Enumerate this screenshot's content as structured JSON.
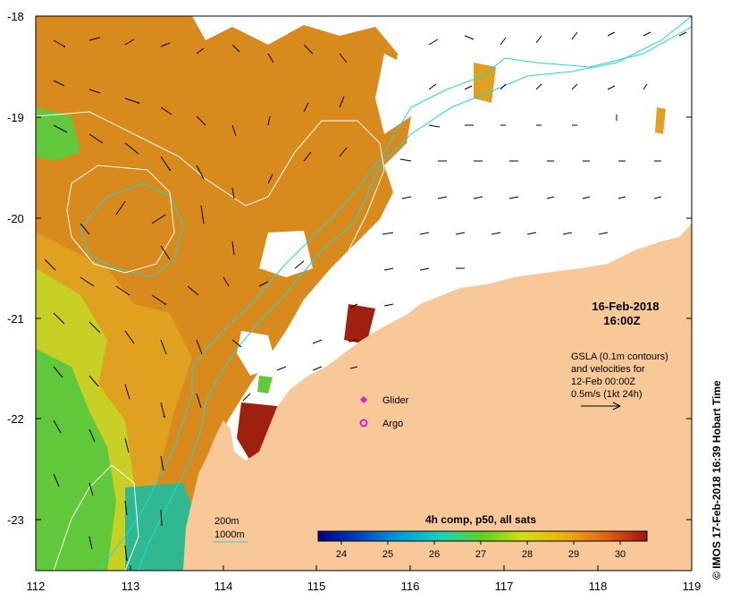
{
  "map": {
    "y_ticks": [
      "-18",
      "-19",
      "-20",
      "-21",
      "-22",
      "-23"
    ],
    "x_ticks": [
      "112",
      "113",
      "114",
      "115",
      "116",
      "117",
      "118",
      "119"
    ]
  },
  "info": {
    "date": "16-Feb-2018",
    "time": "16:00Z",
    "gsla_line1": "GSLA (0.1m contours)",
    "gsla_line2": "and velocities for",
    "gsla_line3": "12-Feb 00:00Z",
    "scale_label": "0.5m/s (1kt 24h)"
  },
  "markers": {
    "glider": "Glider",
    "argo": "Argo",
    "glider_color": "#d81fd8",
    "argo_color": "#d81fd8"
  },
  "bathy": {
    "b200": "200m",
    "b1000": "1000m",
    "line_color": "#20d8d8"
  },
  "colorbar": {
    "title": "4h comp, p50, all sats",
    "ticks": [
      "24",
      "25",
      "26",
      "27",
      "28",
      "29",
      "30"
    ]
  },
  "credit": "© IMOS 17-Feb-2018 16:39 Hobart Time",
  "colors": {
    "land": "#f8c898",
    "sst_hot": "#d07010",
    "sst_warm": "#e09020",
    "sst_mid": "#c8d020",
    "sst_cool": "#58c838",
    "sst_cold": "#30b890",
    "sst_very_hot": "#a02010"
  }
}
